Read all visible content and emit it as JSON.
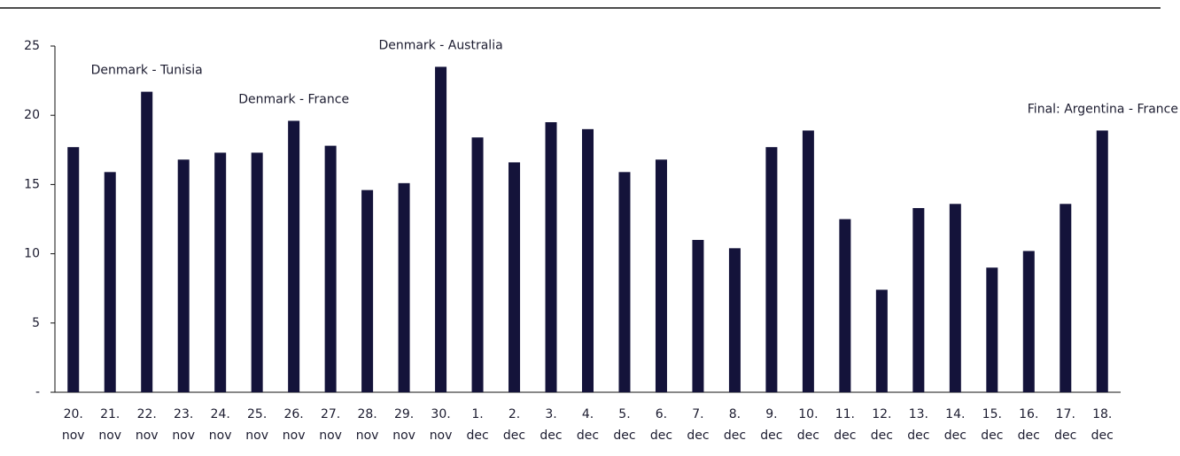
{
  "chart_data": {
    "type": "bar",
    "categories": [
      "20. nov",
      "21. nov",
      "22. nov",
      "23. nov",
      "24. nov",
      "25. nov",
      "26. nov",
      "27. nov",
      "28. nov",
      "29. nov",
      "30. nov",
      "1. dec",
      "2. dec",
      "3. dec",
      "4. dec",
      "5. dec",
      "6. dec",
      "7. dec",
      "8. dec",
      "9. dec",
      "10. dec",
      "11. dec",
      "12. dec",
      "13. dec",
      "14. dec",
      "15. dec",
      "16. dec",
      "17. dec",
      "18. dec"
    ],
    "values": [
      17.7,
      15.9,
      21.7,
      16.8,
      17.3,
      17.3,
      19.6,
      17.8,
      14.6,
      15.1,
      23.5,
      18.4,
      16.6,
      19.5,
      19.0,
      15.9,
      16.8,
      11.0,
      10.4,
      17.7,
      18.9,
      12.5,
      7.4,
      13.3,
      13.6,
      9.0,
      10.2,
      13.6,
      18.9
    ],
    "color": "#14133a",
    "ylim": [
      0,
      25
    ],
    "yticks": [
      {
        "value": 0,
        "label": "-"
      },
      5,
      10,
      15,
      20,
      25
    ],
    "annotations": [
      {
        "text": "Denmark - Tunisia",
        "category": "22. nov"
      },
      {
        "text": "Denmark - France",
        "category": "26. nov"
      },
      {
        "text": "Denmark - Australia",
        "category": "30. nov"
      },
      {
        "text": "Final: Argentina - France",
        "category": "18. dec"
      }
    ]
  }
}
